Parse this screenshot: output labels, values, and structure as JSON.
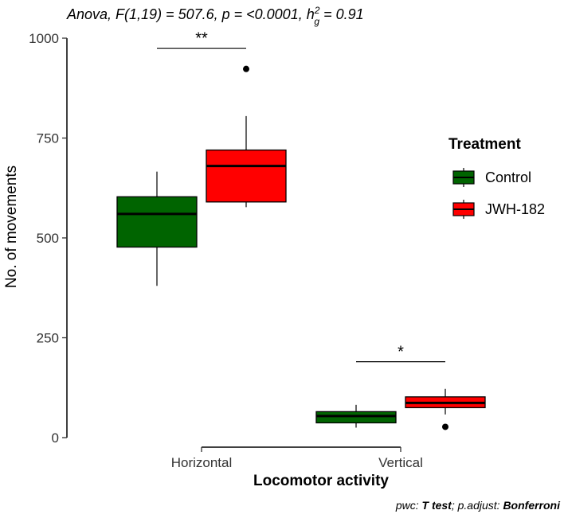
{
  "chart_data": {
    "type": "boxplot",
    "subtitle_prefix": "Anova, F(1,19) = 507.6, p = <0.0001, h",
    "subtitle_sup": "2",
    "subtitle_sub": "g",
    "subtitle_suffix": " = 0.91",
    "xlabel": "Locomotor activity",
    "ylabel": "No. of movements",
    "ylim": [
      0,
      1000
    ],
    "yticks": [
      0,
      250,
      500,
      750,
      1000
    ],
    "categories": [
      "Horizontal",
      "Vertical"
    ],
    "legend": {
      "title": "Treatment",
      "placement": "right",
      "items": [
        {
          "label": "Control",
          "color": "#006400"
        },
        {
          "label": "JWH-182",
          "color": "#FF0000"
        }
      ]
    },
    "series": [
      {
        "name": "Control",
        "color": "#006400",
        "boxes": [
          {
            "category": "Horizontal",
            "whisker_low": 380,
            "q1": 477,
            "median": 560,
            "q3": 603,
            "whisker_high": 666,
            "outliers": []
          },
          {
            "category": "Vertical",
            "whisker_low": 25,
            "q1": 37,
            "median": 54,
            "q3": 65,
            "whisker_high": 82,
            "outliers": []
          }
        ]
      },
      {
        "name": "JWH-182",
        "color": "#FF0000",
        "boxes": [
          {
            "category": "Horizontal",
            "whisker_low": 577,
            "q1": 590,
            "median": 680,
            "q3": 720,
            "whisker_high": 805,
            "outliers": [
              923
            ]
          },
          {
            "category": "Vertical",
            "whisker_low": 58,
            "q1": 75,
            "median": 87,
            "q3": 102,
            "whisker_high": 122,
            "outliers": [
              27
            ]
          }
        ]
      }
    ],
    "significance": [
      {
        "category": "Horizontal",
        "label": "**",
        "y": 975
      },
      {
        "category": "Vertical",
        "label": "*",
        "y": 190
      }
    ],
    "caption_parts": [
      {
        "text": "pwc: ",
        "bold": false
      },
      {
        "text": "T test",
        "bold": true
      },
      {
        "text": "; p.adjust: ",
        "bold": false
      },
      {
        "text": "Bonferroni",
        "bold": true
      }
    ]
  }
}
